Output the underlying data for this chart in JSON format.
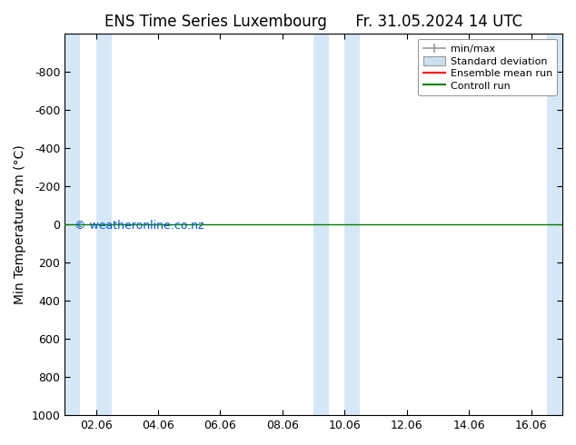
{
  "title_left": "ENS Time Series Luxembourg",
  "title_right": "Fr. 31.05.2024 14 UTC",
  "ylabel": "Min Temperature 2m (°C)",
  "watermark": "© weatheronline.co.nz",
  "ylim_bottom": 1000,
  "ylim_top": -1000,
  "yticks": [
    -800,
    -600,
    -400,
    -200,
    0,
    200,
    400,
    600,
    800,
    1000
  ],
  "xtick_labels": [
    "02.06",
    "04.06",
    "06.06",
    "08.06",
    "10.06",
    "12.06",
    "14.06",
    "16.06"
  ],
  "xtick_positions": [
    1.0,
    3.0,
    5.0,
    7.0,
    9.0,
    11.0,
    13.0,
    15.0
  ],
  "xmin": 0,
  "xmax": 16,
  "shaded_bands": [
    [
      0.0,
      0.5
    ],
    [
      1.0,
      1.5
    ],
    [
      8.0,
      8.5
    ],
    [
      9.0,
      9.5
    ],
    [
      15.5,
      16.0
    ]
  ],
  "shade_color": "#d6e8f7",
  "horizontal_line_y": 0,
  "line_color_green": "#008000",
  "line_color_red": "#ff0000",
  "background_color": "#ffffff",
  "plot_bg_color": "#ffffff",
  "legend_entries": [
    "min/max",
    "Standard deviation",
    "Ensemble mean run",
    "Controll run"
  ],
  "legend_colors": [
    "#aaaaaa",
    "#c8ddf0",
    "#ff0000",
    "#008000"
  ],
  "title_fontsize": 12,
  "axis_label_fontsize": 10,
  "tick_fontsize": 9,
  "watermark_fontsize": 9
}
